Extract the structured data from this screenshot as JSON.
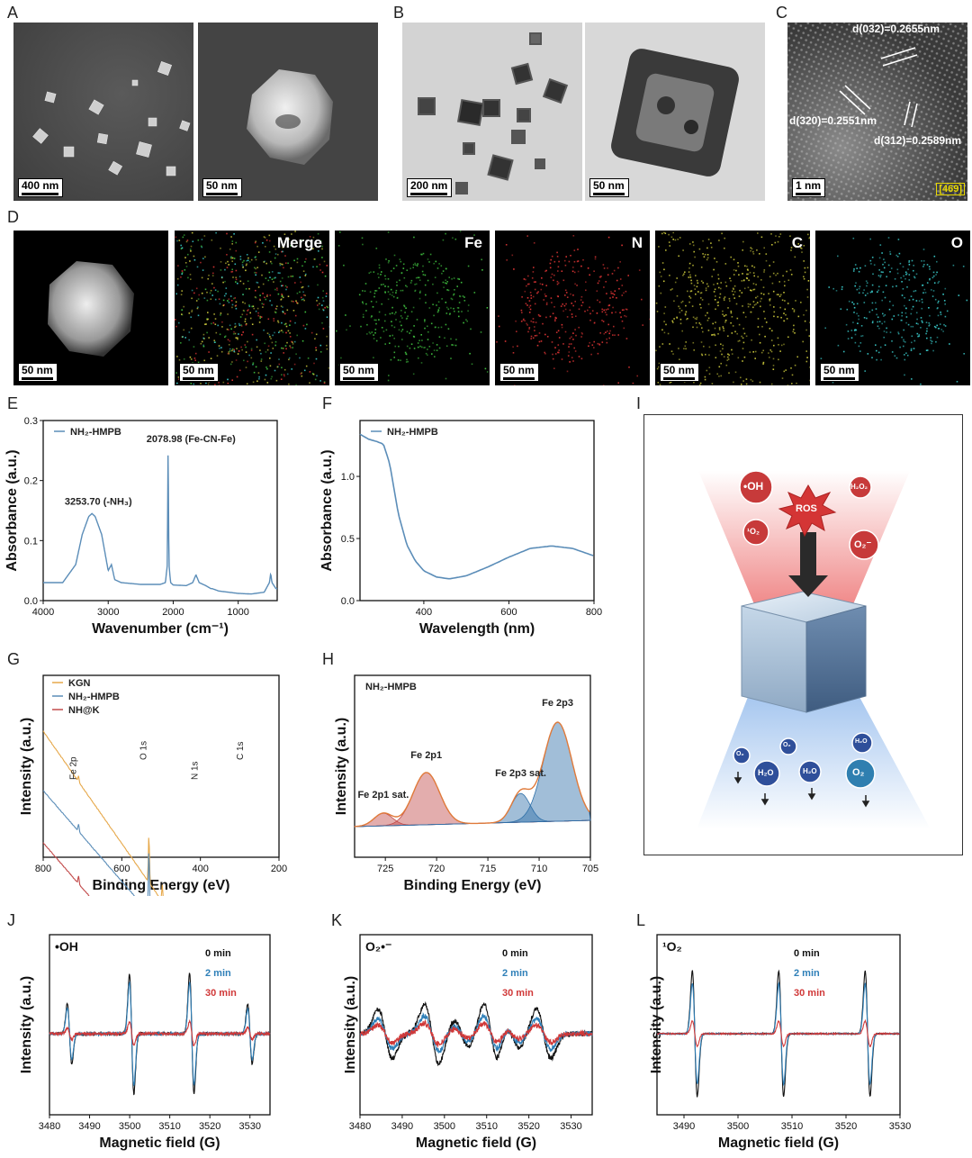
{
  "panels": {
    "A": "A",
    "B": "B",
    "C": "C",
    "D": "D",
    "E": "E",
    "F": "F",
    "G": "G",
    "H": "H",
    "I": "I",
    "J": "J",
    "K": "K",
    "L": "L"
  },
  "sem": {
    "left_scale": "400 nm",
    "right_scale": "50 nm"
  },
  "tem": {
    "left_scale": "200 nm",
    "right_scale": "50 nm"
  },
  "hrtem": {
    "scale": "1 nm",
    "zone": "[469]",
    "d1": "d(032)=0.2655nm",
    "d2": "d(320)=0.2551nm",
    "d3": "d(312)=0.2589nm"
  },
  "eds": {
    "scale": "50 nm",
    "labels": [
      "",
      "Merge",
      "Fe",
      "N",
      "C",
      "O"
    ],
    "colors": [
      "#cccccc",
      "#c8b848",
      "#3fbf3f",
      "#e03535",
      "#c8c53a",
      "#38c8c8"
    ]
  },
  "schematic": {
    "ros_labels": [
      "•OH",
      "ROS",
      "H₂O₂",
      "¹O₂",
      "O₂⁻"
    ],
    "product_labels": [
      "O₂",
      "O₂",
      "H₂O",
      "H₂O",
      "H₂O",
      "O₂"
    ]
  },
  "chart_data": [
    {
      "id": "E",
      "type": "line",
      "xlabel": "Wavenumber (cm⁻¹)",
      "ylabel": "Absorbance (a.u.)",
      "xlim": [
        4000,
        400
      ],
      "ylim": [
        0,
        0.3
      ],
      "xticks": [
        "4000",
        "3000",
        "2000",
        "1000"
      ],
      "yticks": [
        "0.0",
        "0.1",
        "0.2",
        "0.3"
      ],
      "series": [
        {
          "name": "NH₂-HMPB",
          "color": "#5b8db8",
          "x": [
            4000,
            3700,
            3500,
            3400,
            3300,
            3250,
            3200,
            3100,
            3000,
            2950,
            2900,
            2800,
            2500,
            2200,
            2120,
            2090,
            2079,
            2065,
            2040,
            2000,
            1800,
            1700,
            1650,
            1600,
            1500,
            1420,
            1400,
            1300,
            1000,
            800,
            600,
            520,
            500,
            480,
            420
          ],
          "y": [
            0.03,
            0.03,
            0.06,
            0.11,
            0.14,
            0.145,
            0.14,
            0.11,
            0.05,
            0.06,
            0.035,
            0.03,
            0.027,
            0.027,
            0.03,
            0.06,
            0.26,
            0.06,
            0.03,
            0.026,
            0.025,
            0.03,
            0.043,
            0.03,
            0.025,
            0.02,
            0.02,
            0.016,
            0.012,
            0.011,
            0.014,
            0.03,
            0.045,
            0.03,
            0.02
          ]
        }
      ],
      "annotations": [
        "2078.98 (Fe-CN-Fe)",
        "3253.70 (-NH₃)"
      ]
    },
    {
      "id": "F",
      "type": "line",
      "xlabel": "Wavelength (nm)",
      "ylabel": "Absorbance (a.u.)",
      "xlim": [
        250,
        800
      ],
      "ylim": [
        0,
        1.45
      ],
      "xticks": [
        "400",
        "600",
        "800"
      ],
      "yticks": [
        "0.0",
        "0.5",
        "1.0"
      ],
      "series": [
        {
          "name": "NH₂-HMPB",
          "color": "#5b8db8",
          "x": [
            250,
            270,
            290,
            305,
            320,
            340,
            360,
            380,
            400,
            430,
            460,
            500,
            550,
            600,
            650,
            700,
            750,
            800
          ],
          "y": [
            1.34,
            1.3,
            1.28,
            1.26,
            1.1,
            0.7,
            0.45,
            0.32,
            0.24,
            0.19,
            0.175,
            0.2,
            0.27,
            0.35,
            0.42,
            0.44,
            0.42,
            0.36
          ]
        }
      ]
    },
    {
      "id": "G",
      "type": "line",
      "xlabel": "Binding Energy (eV)",
      "ylabel": "Intensity (a.u.)",
      "xlim": [
        800,
        200
      ],
      "xticks": [
        "800",
        "600",
        "400",
        "200"
      ],
      "series": [
        {
          "name": "KGN",
          "color": "#e6a84a"
        },
        {
          "name": "NH₂-HMPB",
          "color": "#5b8db8"
        },
        {
          "name": "NH@K",
          "color": "#c24a4a"
        }
      ],
      "annotations": [
        "Fe 2p",
        "O 1s",
        "N 1s",
        "C 1s"
      ]
    },
    {
      "id": "H",
      "type": "line",
      "title": "NH₂-HMPB",
      "xlabel": "Binding Energy (eV)",
      "ylabel": "Intensity (a.u.)",
      "xlim": [
        728,
        705
      ],
      "xticks": [
        "725",
        "720",
        "715",
        "710",
        "705"
      ],
      "peaks": [
        {
          "name": "Fe 2p1 sat.",
          "center": 725.2
        },
        {
          "name": "Fe 2p1",
          "center": 721.0
        },
        {
          "name": "Fe 2p3 sat.",
          "center": 711.8
        },
        {
          "name": "Fe 2p3",
          "center": 708.2
        }
      ]
    },
    {
      "id": "J",
      "type": "line",
      "title": "•OH",
      "xlabel": "Magnetic field (G)",
      "ylabel": "Intensity (a.u.)",
      "xlim": [
        3480,
        3535
      ],
      "xticks": [
        "3480",
        "3490",
        "3500",
        "3510",
        "3520",
        "3530"
      ],
      "series": [
        {
          "name": "0 min",
          "color": "#111111"
        },
        {
          "name": "2 min",
          "color": "#2e7fb8"
        },
        {
          "name": "30 min",
          "color": "#d03838"
        }
      ]
    },
    {
      "id": "K",
      "type": "line",
      "title": "O₂•⁻",
      "xlabel": "Magnetic field (G)",
      "ylabel": "Intensity (a.u.)",
      "xlim": [
        3480,
        3535
      ],
      "xticks": [
        "3480",
        "3490",
        "3500",
        "3510",
        "3520",
        "3530"
      ],
      "series": [
        {
          "name": "0 min",
          "color": "#111111"
        },
        {
          "name": "2 min",
          "color": "#2e7fb8"
        },
        {
          "name": "30 min",
          "color": "#d03838"
        }
      ]
    },
    {
      "id": "L",
      "type": "line",
      "title": "¹O₂",
      "xlabel": "Magnetic field (G)",
      "ylabel": "Intensity (a.u.)",
      "xlim": [
        3485,
        3530
      ],
      "xticks": [
        "3490",
        "3500",
        "3510",
        "3520",
        "3530"
      ],
      "series": [
        {
          "name": "0 min",
          "color": "#111111"
        },
        {
          "name": "2 min",
          "color": "#2e7fb8"
        },
        {
          "name": "30 min",
          "color": "#d03838"
        }
      ]
    }
  ]
}
